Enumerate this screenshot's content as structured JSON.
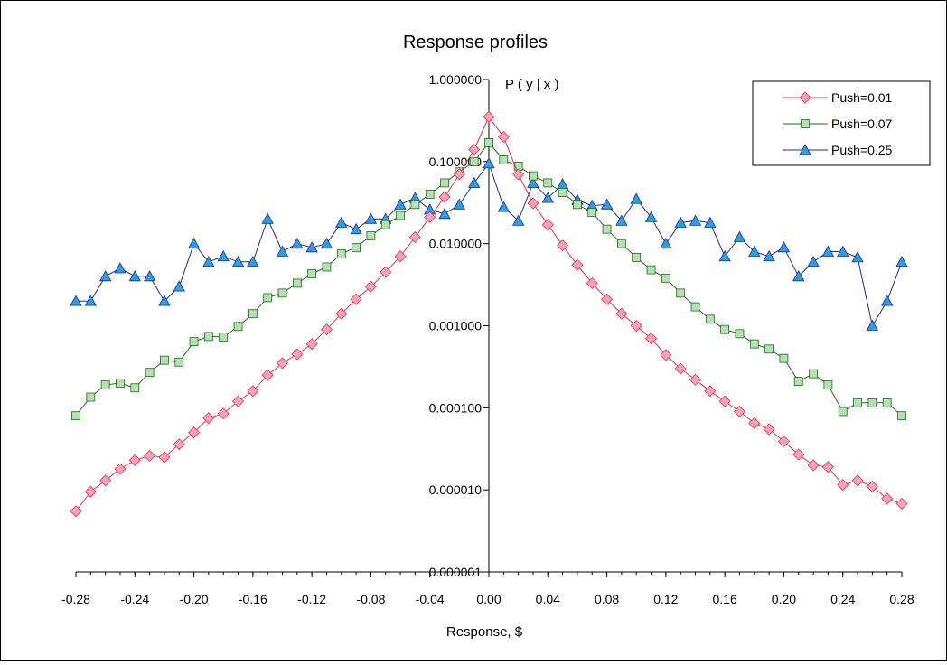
{
  "chart_data": {
    "type": "line",
    "title": "Response profiles",
    "xlabel": "Response, $",
    "ylabel": "P ( y | x )",
    "yscale": "log",
    "xlim": [
      -0.28,
      0.28
    ],
    "ylim": [
      1e-06,
      1
    ],
    "x_ticks": [
      -0.28,
      -0.24,
      -0.2,
      -0.16,
      -0.12,
      -0.08,
      -0.04,
      0.0,
      0.04,
      0.08,
      0.12,
      0.16,
      0.2,
      0.24,
      0.28
    ],
    "x_tick_labels": [
      "-0.28",
      "-0.24",
      "-0.20",
      "-0.16",
      "-0.12",
      "-0.08",
      "-0.04",
      "0.00",
      "0.04",
      "0.08",
      "0.12",
      "0.16",
      "0.20",
      "0.24",
      "0.28"
    ],
    "y_ticks": [
      1e-06,
      1e-05,
      0.0001,
      0.001,
      0.01,
      0.1,
      1
    ],
    "y_tick_labels": [
      "0.000001",
      "0.000010",
      "0.000100",
      "0.001000",
      "0.010000",
      "0.100000",
      "1.000000"
    ],
    "grid": false,
    "legend_position": "top-right",
    "x": [
      -0.28,
      -0.27,
      -0.26,
      -0.25,
      -0.24,
      -0.23,
      -0.22,
      -0.21,
      -0.2,
      -0.19,
      -0.18,
      -0.17,
      -0.16,
      -0.15,
      -0.14,
      -0.13,
      -0.12,
      -0.11,
      -0.1,
      -0.09,
      -0.08,
      -0.07,
      -0.06,
      -0.05,
      -0.04,
      -0.03,
      -0.02,
      -0.01,
      0.0,
      0.01,
      0.02,
      0.03,
      0.04,
      0.05,
      0.06,
      0.07,
      0.08,
      0.09,
      0.1,
      0.11,
      0.12,
      0.13,
      0.14,
      0.15,
      0.16,
      0.17,
      0.18,
      0.19,
      0.2,
      0.21,
      0.22,
      0.23,
      0.24,
      0.25,
      0.26,
      0.27,
      0.28
    ],
    "series": [
      {
        "name": "Push=0.01",
        "color": "#e0304a",
        "fill": "#f5a3b6",
        "marker": "diamond",
        "values": [
          5.5e-06,
          9.5e-06,
          1.3e-05,
          1.8e-05,
          2.3e-05,
          2.6e-05,
          2.5e-05,
          3.6e-05,
          5e-05,
          7.5e-05,
          8.5e-05,
          0.00012,
          0.00016,
          0.00025,
          0.00035,
          0.00045,
          0.0006,
          0.0009,
          0.0014,
          0.0021,
          0.003,
          0.0045,
          0.007,
          0.012,
          0.021,
          0.037,
          0.07,
          0.14,
          0.35,
          0.2,
          0.07,
          0.031,
          0.017,
          0.0095,
          0.0055,
          0.0033,
          0.0021,
          0.0014,
          0.001,
          0.0007,
          0.00044,
          0.0003,
          0.00022,
          0.00016,
          0.00012,
          9e-05,
          6.5e-05,
          5.5e-05,
          3.9e-05,
          2.7e-05,
          2e-05,
          1.9e-05,
          1.15e-05,
          1.3e-05,
          1.1e-05,
          7.8e-06,
          6.8e-06
        ]
      },
      {
        "name": "Push=0.07",
        "color": "#1f6b1f",
        "fill": "#b5e0b0",
        "marker": "square",
        "values": [
          8e-05,
          0.000135,
          0.00019,
          0.0002,
          0.000175,
          0.00027,
          0.00038,
          0.00036,
          0.00064,
          0.00074,
          0.00073,
          0.00098,
          0.0014,
          0.0022,
          0.0025,
          0.0033,
          0.0043,
          0.0052,
          0.0075,
          0.009,
          0.0125,
          0.017,
          0.022,
          0.03,
          0.04,
          0.055,
          0.075,
          0.1,
          0.17,
          0.105,
          0.088,
          0.067,
          0.055,
          0.042,
          0.03,
          0.024,
          0.015,
          0.01,
          0.0068,
          0.0048,
          0.0038,
          0.0025,
          0.0017,
          0.0012,
          0.0009,
          0.0008,
          0.0006,
          0.00052,
          0.0004,
          0.00021,
          0.00026,
          0.00019,
          9e-05,
          0.000115,
          0.000115,
          0.000115,
          8e-05
        ]
      },
      {
        "name": "Push=0.25",
        "color": "#1a2e8f",
        "fill": "#2e9ee0",
        "marker": "triangle",
        "values": [
          0.002,
          0.002,
          0.004,
          0.005,
          0.004,
          0.004,
          0.002,
          0.003,
          0.01,
          0.006,
          0.007,
          0.006,
          0.006,
          0.02,
          0.008,
          0.01,
          0.009,
          0.01,
          0.018,
          0.015,
          0.02,
          0.02,
          0.03,
          0.036,
          0.026,
          0.023,
          0.03,
          0.055,
          0.095,
          0.028,
          0.019,
          0.055,
          0.036,
          0.053,
          0.034,
          0.029,
          0.03,
          0.019,
          0.035,
          0.021,
          0.01,
          0.018,
          0.019,
          0.018,
          0.007,
          0.012,
          0.008,
          0.007,
          0.009,
          0.004,
          0.006,
          0.008,
          0.008,
          0.0068,
          0.001,
          0.002,
          0.006
        ]
      }
    ]
  }
}
